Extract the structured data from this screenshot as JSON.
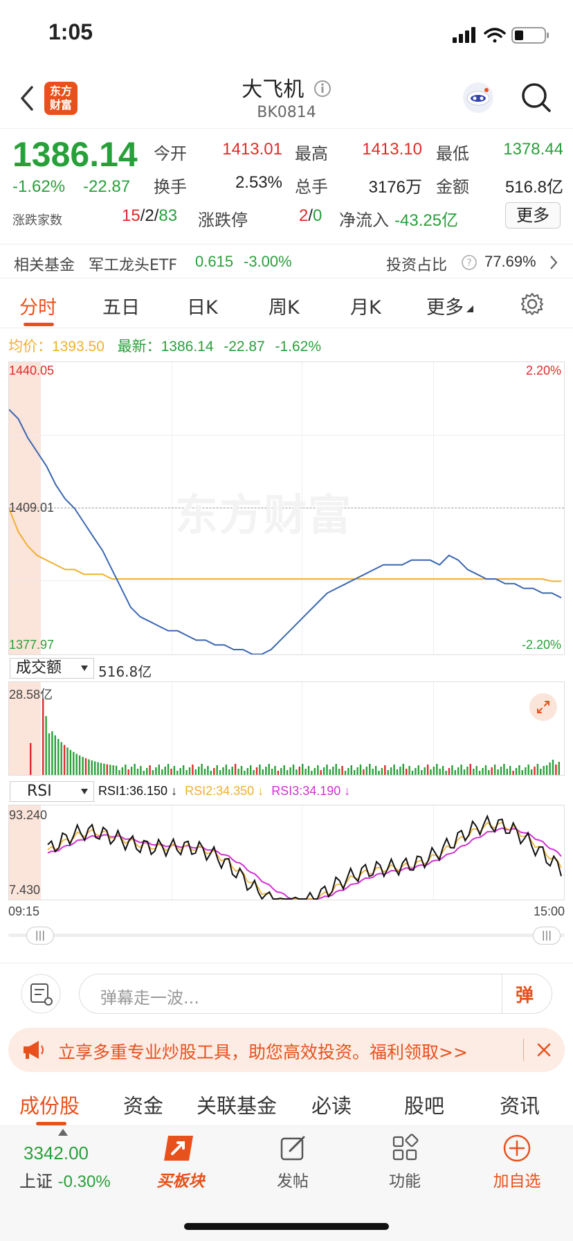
{
  "status": {
    "time": "1:05"
  },
  "header": {
    "logo_text_top": "东方",
    "logo_text_bottom": "财富",
    "title": "大飞机",
    "code": "BK0814"
  },
  "quote": {
    "price": "1386.14",
    "change_pct": "-1.62%",
    "change": "-22.87",
    "open_label": "今开",
    "open": "1413.01",
    "high_label": "最高",
    "high": "1413.10",
    "low_label": "最低",
    "low": "1378.44",
    "turnover_label": "换手",
    "turnover": "2.53%",
    "volume_label": "总手",
    "volume": "3176万",
    "amount_label": "金额",
    "amount": "516.8亿",
    "breadth_label": "涨跌家数",
    "breadth_up": "15",
    "breadth_flat": "2",
    "breadth_down": "83",
    "slash": "/",
    "limit_label": "涨跌停",
    "limit_up": "2",
    "limit_down": "0",
    "netflow_label": "净流入",
    "netflow": "-43.25亿",
    "more_label": "更多"
  },
  "fund": {
    "label": "相关基金",
    "name": "军工龙头ETF",
    "price": "0.615",
    "change": "-3.00%",
    "ratio_label": "投资占比",
    "ratio": "77.69%"
  },
  "tabs": [
    {
      "label": "分时"
    },
    {
      "label": "五日"
    },
    {
      "label": "日K"
    },
    {
      "label": "周K"
    },
    {
      "label": "月K"
    },
    {
      "label": "更多"
    }
  ],
  "legend": {
    "avg_label": "均价：",
    "avg": "1393.50",
    "last_label": "最新：",
    "last": "1386.14",
    "change": "-22.87",
    "pct": "-1.62%"
  },
  "chart_data": {
    "type": "line",
    "price_axis": {
      "max": "1440.05",
      "mid": "1409.01",
      "min": "1377.97",
      "max_pct": "2.20%",
      "min_pct": "-2.20%"
    },
    "watermark": "东方财富",
    "time_start": "09:15",
    "time_end": "15:00",
    "volume": {
      "selector": "成交额",
      "total": "516.8亿",
      "max": "28.58亿"
    },
    "rsi": {
      "selector": "RSI",
      "rsi1": "RSI1:36.150 ↓",
      "rsi2": "RSI2:34.350 ↓",
      "rsi3": "RSI3:34.190 ↓",
      "max": "93.240",
      "min": "7.430"
    },
    "price_series": [
      1430,
      1428,
      1424,
      1421,
      1418,
      1414,
      1411,
      1409,
      1406,
      1403,
      1400,
      1396,
      1392,
      1388,
      1386,
      1385,
      1384,
      1383,
      1383,
      1382,
      1381,
      1381,
      1380,
      1380,
      1379,
      1379,
      1378,
      1378,
      1379,
      1381,
      1383,
      1385,
      1387,
      1389,
      1391,
      1392,
      1393,
      1394,
      1395,
      1396,
      1397,
      1397,
      1397,
      1398,
      1398,
      1398,
      1397,
      1399,
      1398,
      1396,
      1395,
      1394,
      1394,
      1393,
      1393,
      1392,
      1392,
      1391,
      1391,
      1390
    ],
    "avg_series": [
      1409,
      1404,
      1401,
      1399,
      1398,
      1397,
      1396,
      1396,
      1395,
      1395,
      1395,
      1394,
      1394,
      1394,
      1394,
      1394,
      1394,
      1394,
      1394,
      1394,
      1394,
      1394,
      1394,
      1394,
      1394,
      1394,
      1394,
      1394,
      1394,
      1394,
      1394,
      1394,
      1394,
      1394,
      1394,
      1394,
      1394,
      1394,
      1394,
      1394,
      1394,
      1394,
      1394,
      1394,
      1394,
      1394,
      1394,
      1394,
      1394,
      1394,
      1394,
      1394,
      1394,
      1394,
      1394,
      1394,
      1394,
      1394,
      1393.5,
      1393.5
    ],
    "colors": {
      "price": "#3a66b0",
      "avg": "#f0b030",
      "up": "#e02a2a",
      "down": "#28a03a",
      "rsi1": "#111111",
      "rsi2": "#f0b030",
      "rsi3": "#d030d0"
    }
  },
  "danmu": {
    "placeholder": "弹幕走一波...",
    "btn": "弹"
  },
  "promo": {
    "text": "立享多重专业炒股工具，助您高效投资。福利领取>>"
  },
  "bottom_tabs": [
    {
      "label": "成份股"
    },
    {
      "label": "资金"
    },
    {
      "label": "关联基金"
    },
    {
      "label": "必读"
    },
    {
      "label": "股吧"
    },
    {
      "label": "资讯"
    }
  ],
  "bottom_bar": {
    "index_value": "3342.00",
    "index_name": "上证",
    "index_change": "-0.30%",
    "buy_label": "买板块",
    "post_label": "发帖",
    "func_label": "功能",
    "add_label": "加自选"
  }
}
